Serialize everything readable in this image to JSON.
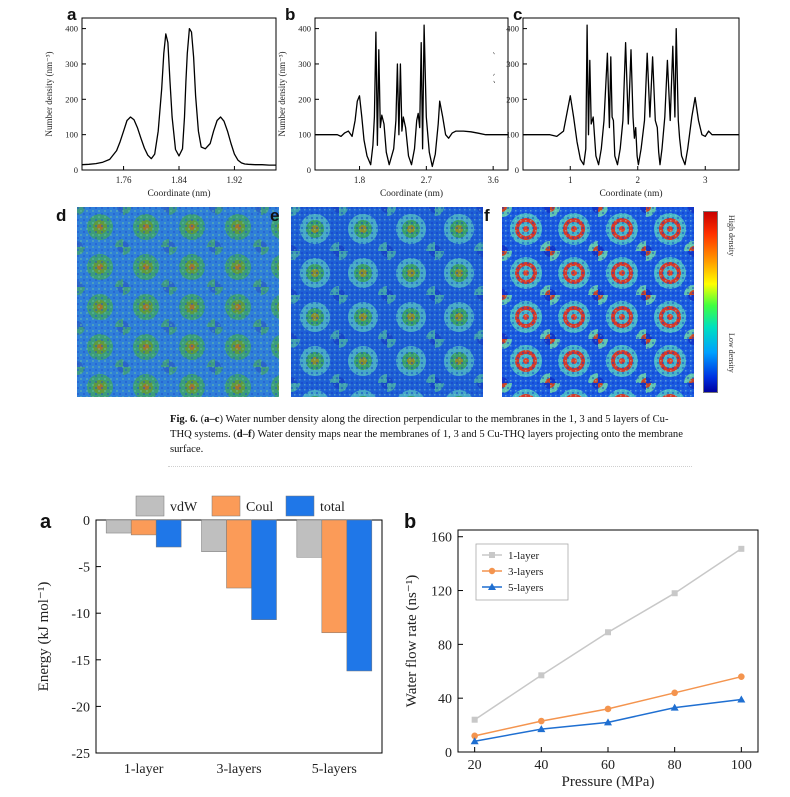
{
  "labels": {
    "a1": "a",
    "b1": "b",
    "c1": "c",
    "d": "d",
    "e": "e",
    "f": "f",
    "a2": "a",
    "b2": "b"
  },
  "caption": {
    "fig": "Fig. 6.",
    "p1": "(",
    "b1": "a–c",
    "p2": ") Water number density along the direction perpendicular to the membranes in the 1, 3 and 5 layers of Cu-THQ systems. (",
    "b2": "d–f",
    "p3": ") Water density maps near the membranes of 1, 3 and 5 Cu-THQ layers projecting onto the membrane surface."
  },
  "colorbar": {
    "high": "High density",
    "low": "Low density"
  },
  "chart_data": [
    {
      "id": "fig6a",
      "type": "line",
      "xlabel": "Coordinate (nm)",
      "ylabel": "Number density (nm⁻³)",
      "xlim": [
        1.7,
        1.98
      ],
      "ylim": [
        0,
        430
      ],
      "xticks": [
        1.76,
        1.84,
        1.92
      ],
      "xtick_labels": [
        "1.76",
        "1.84",
        "1.92"
      ],
      "yticks": [
        0,
        100,
        200,
        300,
        400
      ],
      "ytick_labels": [
        "0",
        "100",
        "200",
        "300",
        "400"
      ],
      "x": [
        1.7,
        1.71,
        1.72,
        1.73,
        1.74,
        1.75,
        1.755,
        1.76,
        1.765,
        1.77,
        1.775,
        1.78,
        1.785,
        1.79,
        1.795,
        1.8,
        1.805,
        1.81,
        1.815,
        1.818,
        1.821,
        1.824,
        1.827,
        1.83,
        1.835,
        1.84,
        1.845,
        1.848,
        1.85,
        1.852,
        1.855,
        1.858,
        1.861,
        1.864,
        1.868,
        1.872,
        1.878,
        1.885,
        1.89,
        1.895,
        1.9,
        1.905,
        1.91,
        1.915,
        1.92,
        1.925,
        1.93,
        1.935,
        1.94,
        1.95,
        1.96,
        1.97,
        1.98
      ],
      "y": [
        15,
        16,
        18,
        22,
        30,
        55,
        80,
        110,
        140,
        150,
        142,
        120,
        90,
        62,
        42,
        32,
        45,
        110,
        230,
        330,
        385,
        360,
        250,
        150,
        58,
        40,
        60,
        150,
        250,
        330,
        400,
        390,
        320,
        210,
        110,
        65,
        60,
        75,
        110,
        140,
        150,
        138,
        110,
        75,
        45,
        28,
        20,
        17,
        16,
        15,
        15,
        14,
        14
      ]
    },
    {
      "id": "fig6b",
      "type": "line",
      "xlabel": "Coordinate (nm)",
      "ylabel": "Number density (nm⁻³)",
      "xlim": [
        1.2,
        3.8
      ],
      "ylim": [
        0,
        430
      ],
      "xticks": [
        1.8,
        2.7,
        3.6
      ],
      "xtick_labels": [
        "1.8",
        "2.7",
        "3.6"
      ],
      "yticks": [
        0,
        100,
        200,
        300,
        400
      ],
      "ytick_labels": [
        "0",
        "100",
        "200",
        "300",
        "400"
      ],
      "x": [
        1.2,
        1.35,
        1.5,
        1.55,
        1.6,
        1.65,
        1.7,
        1.74,
        1.77,
        1.8,
        1.83,
        1.86,
        1.9,
        1.95,
        1.98,
        2.0,
        2.02,
        2.04,
        2.06,
        2.08,
        2.1,
        2.13,
        2.16,
        2.2,
        2.26,
        2.29,
        2.31,
        2.33,
        2.35,
        2.37,
        2.39,
        2.42,
        2.46,
        2.5,
        2.54,
        2.57,
        2.59,
        2.61,
        2.63,
        2.65,
        2.67,
        2.7,
        2.74,
        2.78,
        2.82,
        2.86,
        2.88,
        2.92,
        2.96,
        3.0,
        3.05,
        3.1,
        3.2,
        3.3,
        3.4,
        3.5,
        3.6,
        3.7,
        3.8
      ],
      "y": [
        100,
        100,
        100,
        95,
        105,
        110,
        95,
        140,
        195,
        210,
        150,
        85,
        40,
        15,
        70,
        150,
        390,
        70,
        340,
        120,
        155,
        130,
        50,
        15,
        60,
        140,
        300,
        100,
        300,
        110,
        150,
        120,
        40,
        15,
        60,
        140,
        160,
        120,
        360,
        60,
        410,
        150,
        50,
        10,
        45,
        130,
        195,
        150,
        100,
        90,
        105,
        110,
        110,
        108,
        104,
        100,
        100,
        100,
        100
      ]
    },
    {
      "id": "fig6c",
      "type": "line",
      "xlabel": "Coordinate (nm)",
      "ylabel": "Number density (nm⁻³)",
      "xlim": [
        0.3,
        3.5
      ],
      "ylim": [
        0,
        430
      ],
      "xticks": [
        1,
        2,
        3
      ],
      "xtick_labels": [
        "1",
        "2",
        "3"
      ],
      "yticks": [
        0,
        100,
        200,
        300,
        400
      ],
      "ytick_labels": [
        "0",
        "100",
        "200",
        "300",
        "400"
      ],
      "x": [
        0.3,
        0.5,
        0.7,
        0.8,
        0.9,
        0.95,
        1.0,
        1.05,
        1.1,
        1.15,
        1.2,
        1.23,
        1.25,
        1.27,
        1.29,
        1.31,
        1.34,
        1.38,
        1.42,
        1.46,
        1.5,
        1.55,
        1.58,
        1.6,
        1.62,
        1.64,
        1.66,
        1.7,
        1.74,
        1.78,
        1.82,
        1.86,
        1.9,
        1.93,
        1.95,
        1.97,
        1.99,
        2.01,
        2.05,
        2.1,
        2.14,
        2.18,
        2.22,
        2.26,
        2.29,
        2.31,
        2.33,
        2.36,
        2.4,
        2.44,
        2.48,
        2.52,
        2.55,
        2.57,
        2.6,
        2.62,
        2.65,
        2.7,
        2.74,
        2.8,
        2.85,
        2.9,
        2.95,
        3.0,
        3.05,
        3.1,
        3.2,
        3.3,
        3.4,
        3.5
      ],
      "y": [
        100,
        100,
        100,
        95,
        110,
        160,
        210,
        150,
        80,
        30,
        15,
        60,
        410,
        100,
        310,
        130,
        150,
        40,
        15,
        60,
        140,
        330,
        120,
        320,
        150,
        140,
        40,
        15,
        60,
        140,
        360,
        130,
        340,
        150,
        90,
        120,
        40,
        15,
        60,
        140,
        330,
        150,
        320,
        140,
        120,
        50,
        15,
        60,
        150,
        310,
        140,
        350,
        150,
        400,
        140,
        90,
        40,
        15,
        60,
        150,
        205,
        140,
        100,
        95,
        110,
        100,
        100,
        100,
        100,
        100
      ]
    },
    {
      "id": "fig7a",
      "type": "bar",
      "ylabel": "Energy (kJ mol⁻¹)",
      "ylim": [
        -25,
        0
      ],
      "yticks": [
        0,
        -5,
        -10,
        -15,
        -20,
        -25
      ],
      "ytick_labels": [
        "0",
        "-5",
        "-10",
        "-15",
        "-20",
        "-25"
      ],
      "categories": [
        "1-layer",
        "3-layers",
        "5-layers"
      ],
      "legend_position": "top",
      "series": [
        {
          "name": "vdW",
          "color": "#bfbfbf",
          "values": [
            -1.4,
            -3.4,
            -4.0
          ]
        },
        {
          "name": "Coul",
          "color": "#fb9b58",
          "values": [
            -1.6,
            -7.3,
            -12.1
          ]
        },
        {
          "name": "total",
          "color": "#1f77e8",
          "values": [
            -2.9,
            -10.7,
            -16.2
          ]
        }
      ]
    },
    {
      "id": "fig7b",
      "type": "line",
      "xlabel": "Pressure (MPa)",
      "ylabel": "Water flow rate (ns⁻¹)",
      "xlim": [
        15,
        105
      ],
      "ylim": [
        0,
        165
      ],
      "xticks": [
        20,
        40,
        60,
        80,
        100
      ],
      "xtick_labels": [
        "20",
        "40",
        "60",
        "80",
        "100"
      ],
      "yticks": [
        0,
        40,
        80,
        120,
        160
      ],
      "ytick_labels": [
        "0",
        "40",
        "80",
        "120",
        "160"
      ],
      "legend_position": "top-left",
      "x": [
        20,
        40,
        60,
        80,
        100
      ],
      "series": [
        {
          "name": "1-layer",
          "color": "#c8c8c8",
          "marker": "square",
          "values": [
            24,
            57,
            89,
            118,
            151
          ]
        },
        {
          "name": "3-layers",
          "color": "#f4944e",
          "marker": "circle",
          "values": [
            12,
            23,
            32,
            44,
            56
          ]
        },
        {
          "name": "5-layers",
          "color": "#1f6fd1",
          "marker": "triangle",
          "values": [
            8,
            17,
            22,
            33,
            39
          ]
        }
      ]
    }
  ]
}
